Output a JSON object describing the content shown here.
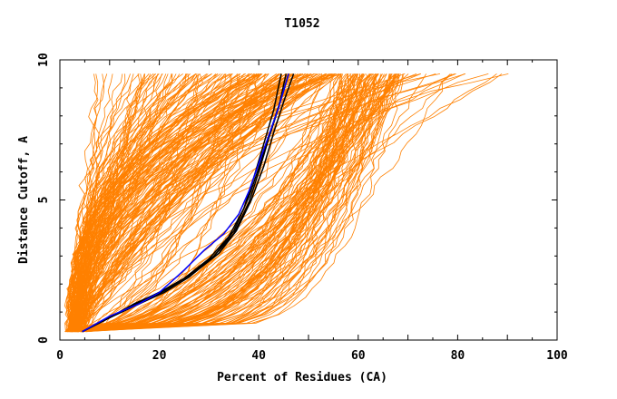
{
  "chart_data": {
    "type": "line",
    "title": "T1052",
    "xlabel": "Percent of Residues (CA)",
    "ylabel": "Distance Cutoff, A",
    "xlim": [
      0,
      100
    ],
    "ylim": [
      0,
      10
    ],
    "x_ticks": [
      "0",
      "20",
      "40",
      "60",
      "80",
      "100"
    ],
    "y_ticks": [
      "0",
      "5",
      "10"
    ],
    "grid": false,
    "colors": {
      "background_series": "#ff8000",
      "highlight_black": "#000000",
      "highlight_blue": "#0000ff"
    },
    "series": [
      {
        "color": "#000000",
        "points": [
          [
            4.5,
            0.3
          ],
          [
            10,
            0.8
          ],
          [
            16,
            1.3
          ],
          [
            21,
            1.75
          ],
          [
            26,
            2.3
          ],
          [
            31,
            3.0
          ],
          [
            35,
            3.8
          ],
          [
            38,
            4.9
          ],
          [
            40,
            6.0
          ],
          [
            42,
            7.2
          ],
          [
            44,
            8.3
          ],
          [
            45.5,
            9.5
          ]
        ]
      },
      {
        "color": "#000000",
        "points": [
          [
            4.5,
            0.3
          ],
          [
            10,
            0.8
          ],
          [
            16,
            1.35
          ],
          [
            21,
            1.8
          ],
          [
            27,
            2.4
          ],
          [
            32,
            3.1
          ],
          [
            35.5,
            3.9
          ],
          [
            38.5,
            5.0
          ],
          [
            41,
            6.2
          ],
          [
            43,
            7.4
          ],
          [
            45,
            8.5
          ],
          [
            47,
            9.5
          ]
        ]
      },
      {
        "color": "#000000",
        "points": [
          [
            4.5,
            0.3
          ],
          [
            10,
            0.8
          ],
          [
            15,
            1.3
          ],
          [
            20,
            1.7
          ],
          [
            25,
            2.2
          ],
          [
            30,
            2.9
          ],
          [
            34,
            3.7
          ],
          [
            37,
            4.7
          ],
          [
            39,
            5.8
          ],
          [
            41,
            7.0
          ],
          [
            43,
            8.2
          ],
          [
            44.5,
            9.5
          ]
        ]
      },
      {
        "color": "#000000",
        "points": [
          [
            4.5,
            0.3
          ],
          [
            10,
            0.8
          ],
          [
            16,
            1.3
          ],
          [
            21,
            1.7
          ],
          [
            26,
            2.25
          ],
          [
            31,
            3.0
          ],
          [
            35,
            3.9
          ],
          [
            38,
            5.1
          ],
          [
            40.5,
            6.4
          ],
          [
            43,
            7.8
          ],
          [
            45,
            8.9
          ],
          [
            46,
            9.5
          ]
        ]
      },
      {
        "color": "#0000ff",
        "points": [
          [
            4.5,
            0.3
          ],
          [
            10,
            0.85
          ],
          [
            16,
            1.3
          ],
          [
            20,
            1.7
          ],
          [
            25,
            2.5
          ],
          [
            29,
            3.2
          ],
          [
            33,
            3.8
          ],
          [
            36,
            4.5
          ],
          [
            38,
            5.3
          ],
          [
            40,
            6.3
          ],
          [
            42,
            7.3
          ],
          [
            44,
            8.3
          ],
          [
            46,
            9.5
          ]
        ]
      }
    ]
  }
}
